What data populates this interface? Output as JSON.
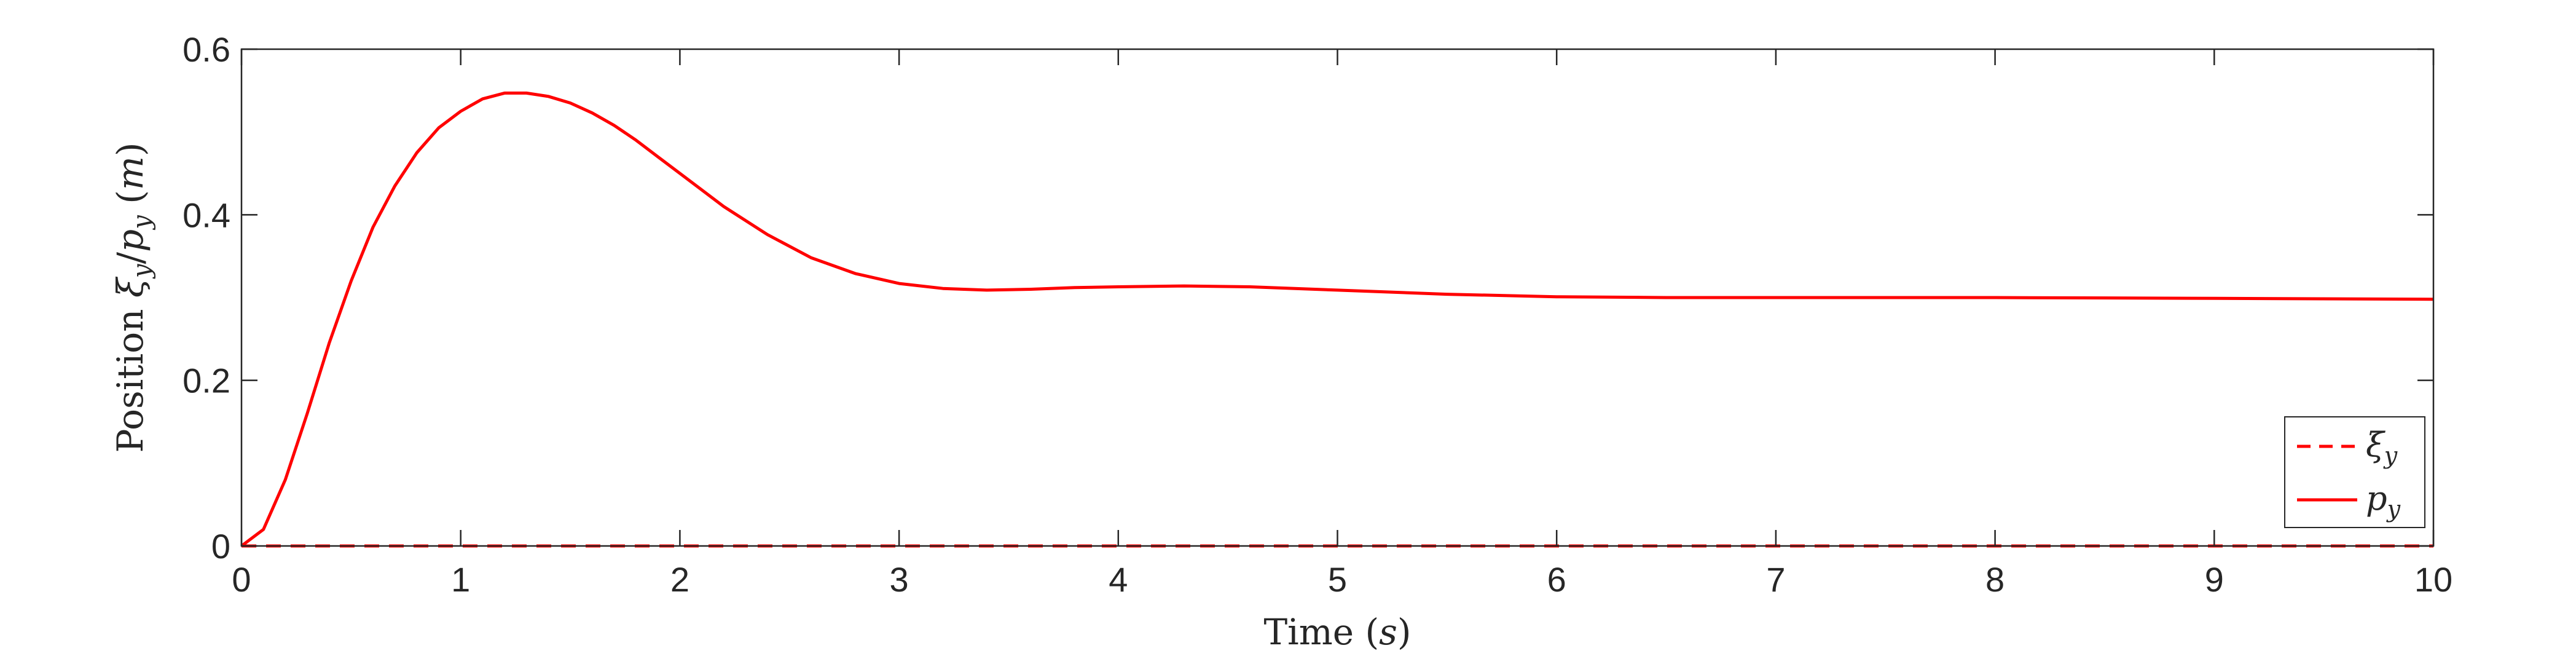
{
  "chart_data": {
    "type": "line",
    "title": "",
    "xlabel": "Time (s)",
    "xlabel_parts": {
      "word": "Time",
      "unit": "s"
    },
    "ylabel": "Position ξy/py (m)",
    "ylabel_parts": {
      "word": "Position",
      "sym1": "ξ",
      "sub1": "y",
      "sep": "/",
      "sym2": "p",
      "sub2": "y",
      "unit": "m"
    },
    "xlim": [
      0,
      10
    ],
    "ylim": [
      0,
      0.6
    ],
    "xticks": [
      0,
      1,
      2,
      3,
      4,
      5,
      6,
      7,
      8,
      9,
      10
    ],
    "yticks": [
      0,
      0.2,
      0.4,
      0.6
    ],
    "ytick_labels": [
      "0",
      "0.2",
      "0.4",
      "0.6"
    ],
    "grid": false,
    "legend_position": "bottom-right",
    "series": [
      {
        "name": "ξy",
        "symbol": "ξ",
        "subscript": "y",
        "style": "dashed",
        "color": "#ff0000",
        "x": [
          0,
          10
        ],
        "y": [
          0,
          0
        ]
      },
      {
        "name": "py",
        "symbol": "p",
        "subscript": "y",
        "style": "solid",
        "color": "#ff0000",
        "x": [
          0,
          0.1,
          0.2,
          0.3,
          0.4,
          0.5,
          0.6,
          0.7,
          0.8,
          0.9,
          1.0,
          1.1,
          1.2,
          1.3,
          1.4,
          1.5,
          1.6,
          1.7,
          1.8,
          1.9,
          2.0,
          2.2,
          2.4,
          2.6,
          2.8,
          3.0,
          3.2,
          3.4,
          3.6,
          3.8,
          4.0,
          4.3,
          4.6,
          5.0,
          5.5,
          6.0,
          6.5,
          7.0,
          8.0,
          9.0,
          10.0
        ],
        "y": [
          0,
          0.02,
          0.08,
          0.16,
          0.245,
          0.32,
          0.385,
          0.435,
          0.475,
          0.505,
          0.525,
          0.54,
          0.547,
          0.547,
          0.543,
          0.535,
          0.523,
          0.508,
          0.49,
          0.47,
          0.45,
          0.41,
          0.376,
          0.348,
          0.329,
          0.317,
          0.311,
          0.309,
          0.31,
          0.312,
          0.313,
          0.314,
          0.313,
          0.309,
          0.304,
          0.301,
          0.3,
          0.3,
          0.3,
          0.299,
          0.298
        ]
      }
    ]
  }
}
